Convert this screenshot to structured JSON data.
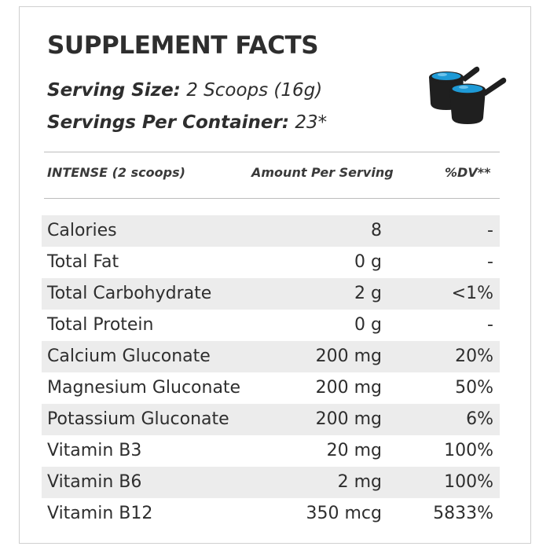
{
  "title": "SUPPLEMENT FACTS",
  "serving": {
    "size_label": "Serving Size:",
    "size_value": "2 Scoops (16g)",
    "per_container_label": "Servings Per Container:",
    "per_container_value": "23*"
  },
  "icon": "scoop-icon",
  "table": {
    "headers": [
      "INTENSE (2 scoops)",
      "Amount Per Serving",
      "%DV**"
    ],
    "rows": [
      {
        "name": "Calories",
        "amount": "8",
        "dv": "-"
      },
      {
        "name": "Total Fat",
        "amount": "0 g",
        "dv": "-"
      },
      {
        "name": "Total Carbohydrate",
        "amount": "2 g",
        "dv": "<1%"
      },
      {
        "name": "Total Protein",
        "amount": "0 g",
        "dv": "-"
      },
      {
        "name": "Calcium Gluconate",
        "amount": "200 mg",
        "dv": "20%"
      },
      {
        "name": "Magnesium Gluconate",
        "amount": "200 mg",
        "dv": "50%"
      },
      {
        "name": "Potassium Gluconate",
        "amount": "200 mg",
        "dv": "6%"
      },
      {
        "name": "Vitamin B3",
        "amount": "20 mg",
        "dv": "100%"
      },
      {
        "name": "Vitamin B6",
        "amount": "2 mg",
        "dv": "100%"
      },
      {
        "name": "Vitamin B12",
        "amount": "350 mcg",
        "dv": "5833%"
      }
    ]
  },
  "colors": {
    "scoop_blue": "#1e9ad6",
    "row_shade": "#ececec",
    "text": "#2e2e2e"
  }
}
